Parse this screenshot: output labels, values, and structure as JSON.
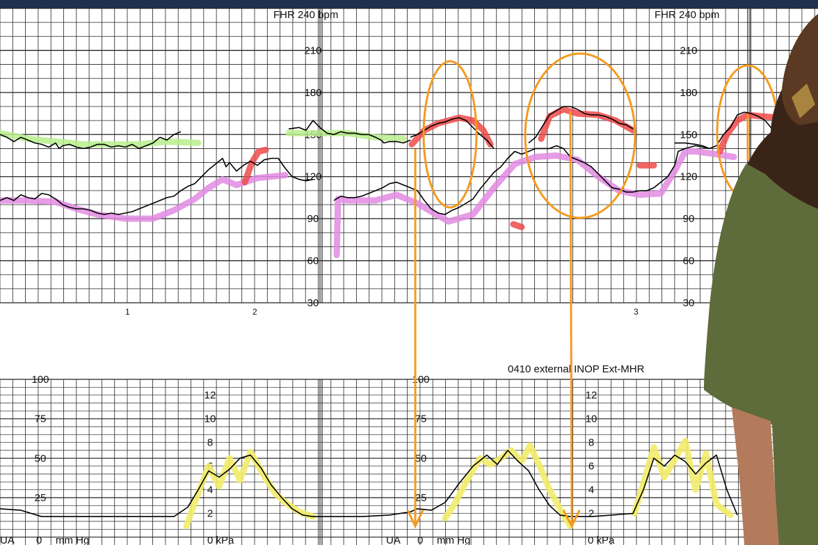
{
  "chart_data": [
    {
      "type": "line",
      "panel": "fetal-heart-rate",
      "y_unit_header": "FHR 240 bpm",
      "y_ticks": [
        30,
        60,
        90,
        120,
        150,
        180,
        210
      ],
      "y_tick_labels": [
        "30",
        "60",
        "90",
        "120",
        "150",
        "180",
        "210"
      ],
      "ylim": [
        30,
        240
      ],
      "x_minute_labels": [
        "1",
        "2",
        "3"
      ],
      "grid": true,
      "series": [
        {
          "color": "#000000",
          "x": [
            0,
            10,
            20,
            30,
            40,
            50,
            60,
            70,
            80,
            85,
            90,
            100,
            110,
            120,
            130,
            140,
            150,
            160,
            170,
            180,
            190,
            200,
            210,
            220,
            230,
            240,
            250,
            260
          ],
          "y": [
            150,
            148,
            145,
            148,
            146,
            144,
            143,
            141,
            144,
            140,
            142,
            143,
            141,
            140,
            141,
            143,
            143,
            141,
            142,
            141,
            143,
            140,
            142,
            144,
            148,
            146,
            150,
            152
          ]
        },
        {
          "color": "#000000",
          "x": [
            415,
            430,
            440,
            450,
            460,
            470,
            480,
            490,
            500,
            510,
            520,
            530,
            540,
            548,
            552,
            560,
            570,
            580,
            590
          ],
          "y": [
            154,
            155,
            153,
            160,
            155,
            151,
            150,
            152,
            151,
            151,
            150,
            150,
            148,
            146,
            144,
            145,
            145,
            144,
            146
          ]
        },
        {
          "color": "#000000",
          "x": [
            590,
            600,
            610,
            620,
            630,
            640,
            650,
            660,
            670,
            680,
            690,
            700,
            710
          ],
          "y": [
            148,
            150,
            153,
            156,
            158,
            159,
            161,
            162,
            160,
            155,
            150,
            146,
            140
          ]
        },
        {
          "color": "#000000",
          "x": [
            760,
            770,
            780,
            790,
            800,
            810,
            820,
            830,
            840,
            850,
            860,
            870,
            880,
            890,
            900,
            910
          ],
          "y": [
            144,
            148,
            156,
            164,
            167,
            170,
            170,
            168,
            165,
            164,
            164,
            163,
            161,
            158,
            157,
            154
          ]
        },
        {
          "color": "#000000",
          "x": [
            970,
            985,
            1000,
            1010,
            1020,
            1030,
            1040,
            1050,
            1060,
            1070,
            1080,
            1090,
            1100,
            1110,
            1120,
            1135
          ],
          "y": [
            144,
            144,
            143,
            142,
            140,
            142,
            150,
            155,
            164,
            166,
            165,
            163,
            160,
            154,
            153,
            152
          ]
        },
        {
          "color": "#000000",
          "x": [
            0,
            10,
            20,
            30,
            40,
            50,
            60,
            70,
            80,
            90,
            100,
            110,
            120,
            130,
            140,
            150,
            160,
            170,
            180,
            190,
            200,
            210,
            220,
            230,
            240,
            250,
            260,
            270,
            280,
            290,
            300,
            310,
            320,
            325,
            330,
            340,
            350,
            360,
            370,
            380,
            390,
            400,
            410,
            420,
            430,
            440,
            450
          ],
          "y": [
            103,
            105,
            103,
            107,
            105,
            104,
            108,
            107,
            104,
            100,
            98,
            97,
            97,
            96,
            94,
            93,
            94,
            93,
            94,
            95,
            97,
            99,
            101,
            103,
            105,
            106,
            110,
            113,
            115,
            120,
            125,
            129,
            133,
            127,
            130,
            124,
            128,
            131,
            128,
            132,
            133,
            133,
            126,
            120,
            118,
            117,
            118
          ]
        },
        {
          "color": "#000000",
          "x": [
            480,
            490,
            500,
            510,
            520,
            530,
            540,
            550,
            560,
            570,
            580,
            590,
            600,
            610,
            620,
            630,
            640,
            650,
            660,
            670,
            680,
            690,
            700,
            710,
            720,
            730,
            740,
            750,
            760,
            770,
            780,
            790,
            800,
            810,
            820,
            830,
            840,
            850,
            860,
            870,
            880,
            890,
            900,
            910,
            920,
            930,
            940,
            950,
            960,
            970,
            975,
            985,
            1000,
            1010,
            1020
          ],
          "y": [
            103,
            106,
            105,
            105,
            106,
            108,
            110,
            112,
            115,
            116,
            114,
            112,
            110,
            103,
            97,
            94,
            93,
            96,
            98,
            101,
            104,
            111,
            117,
            123,
            127,
            133,
            138,
            136,
            138,
            140,
            140,
            140,
            142,
            140,
            134,
            132,
            130,
            127,
            122,
            117,
            112,
            111,
            109,
            109,
            110,
            110,
            112,
            116,
            120,
            128,
            138,
            140,
            142,
            141,
            140
          ]
        }
      ],
      "annotations": {
        "green": [
          {
            "x": [
              0,
              40,
              80,
              120,
              160,
              200,
              240,
              285
            ],
            "y": [
              151,
              147,
              145,
              143,
              143,
              143,
              145,
              144
            ]
          },
          {
            "x": [
              415,
              460,
              500,
              540,
              580
            ],
            "y": [
              151,
              151,
              151,
              148,
              147
            ]
          }
        ],
        "pink": [
          {
            "x": [
              0,
              40,
              80,
              110,
              140,
              180,
              220,
              250,
              280,
              300,
              320,
              340,
              370,
              410
            ],
            "y": [
              103,
              103,
              102,
              97,
              93,
              90,
              90,
              96,
              104,
              112,
              118,
              114,
              119,
              121
            ]
          },
          {
            "x": [
              484,
              486,
              500,
              540,
              570,
              600,
              620,
              645,
              680,
              710,
              740,
              770,
              800,
              830,
              860,
              890,
              920,
              950,
              970,
              985,
              1000,
              1030,
              1055
            ],
            "y": [
              64,
              104,
              103,
              103,
              107,
              101,
              95,
              88,
              93,
              112,
              129,
              134,
              135,
              132,
              120,
              110,
              107,
              108,
              124,
              138,
              138,
              136,
              134
            ]
          }
        ],
        "red": [
          {
            "x": [
              352,
              362,
              372,
              382
            ],
            "y": [
              116,
              130,
              138,
              139
            ]
          },
          {
            "x": [
              592,
              610,
              630,
              660,
              680,
              695,
              705
            ],
            "y": [
              143,
              153,
              158,
              162,
              160,
              153,
              143
            ]
          },
          {
            "x": [
              778,
              790,
              810,
              830,
              860,
              885,
              910
            ],
            "y": [
              147,
              163,
              168,
              165,
              164,
              160,
              153
            ]
          },
          {
            "x": [
              1035,
              1045,
              1060,
              1075,
              1095,
              1120
            ],
            "y": [
              138,
              150,
              160,
              164,
              163,
              162
            ]
          },
          {
            "x": [
              738,
              750
            ],
            "y": [
              86,
              84
            ]
          },
          {
            "x": [
              920,
              940
            ],
            "y": [
              128,
              128
            ]
          }
        ]
      },
      "circled_regions": [
        "orange-ellipse-1",
        "orange-ellipse-2",
        "orange-ellipse-3"
      ]
    },
    {
      "type": "line",
      "panel": "uterine-activity",
      "y_header": "100",
      "y_ticks_mmhg": [
        25,
        50,
        75,
        100
      ],
      "y_tick_labels_mmhg": [
        "25",
        "50",
        "75",
        "100"
      ],
      "y_ticks_kpa": [
        2,
        4,
        6,
        8,
        10,
        12
      ],
      "y_tick_labels_kpa": [
        "2",
        "4",
        "6",
        "8",
        "10",
        "12"
      ],
      "ylim": [
        0,
        100
      ],
      "grid": true,
      "series": [
        {
          "color": "#000000",
          "x": [
            0,
            30,
            60,
            100,
            150,
            200,
            250,
            270,
            285,
            300,
            315,
            330,
            345,
            360,
            375,
            390,
            405,
            420,
            435,
            450,
            480,
            520,
            560,
            590,
            600,
            620,
            640,
            660,
            680,
            700,
            715,
            730,
            745,
            760,
            775,
            790,
            805,
            820,
            850,
            880,
            910,
            925,
            940,
            955,
            970,
            985,
            1000,
            1015,
            1030,
            1045,
            1060
          ],
          "y": [
            18,
            17,
            13,
            13,
            13,
            13,
            13,
            19,
            30,
            42,
            38,
            43,
            50,
            52,
            44,
            33,
            25,
            18,
            14,
            13,
            13,
            13,
            14,
            16,
            18,
            17,
            22,
            34,
            45,
            52,
            46,
            55,
            48,
            42,
            30,
            20,
            14,
            13,
            13,
            14,
            15,
            30,
            50,
            45,
            52,
            48,
            40,
            47,
            52,
            30,
            14
          ]
        }
      ],
      "annotations": {
        "yellow": [
          {
            "x": [
              268,
              285,
              300,
              315,
              330,
              345,
              360,
              378,
              395,
              410,
              430,
              450
            ],
            "y": [
              7,
              28,
              45,
              32,
              50,
              36,
              54,
              40,
              28,
              22,
              16,
              13
            ]
          },
          {
            "x": [
              640,
              655,
              670,
              690,
              705,
              720,
              735,
              750,
              762,
              775,
              790,
              805,
              820
            ],
            "y": [
              12,
              22,
              35,
              50,
              46,
              50,
              55,
              48,
              58,
              46,
              30,
              18,
              7
            ]
          },
          {
            "x": [
              912,
              925,
              940,
              955,
              970,
              985,
              1000,
              1015,
              1030,
              1050
            ],
            "y": [
              15,
              34,
              57,
              38,
              49,
              61,
              30,
              53,
              21,
              14
            ]
          }
        ]
      },
      "status_text": "0410  external  INOP  Ext-MHR",
      "footer_labels": [
        "UA",
        "0",
        "mm Hg",
        "0 kPa"
      ]
    }
  ],
  "colors": {
    "trace": "#000000",
    "grid": "#222222",
    "green_highlight": "#b8ef8c",
    "pink_highlight": "#e28be2",
    "red_highlight": "#ee4a4a",
    "yellow_highlight": "#f2ec6a",
    "orange_markup": "#f59a1e",
    "top_bar": "#1f2f4f"
  },
  "overlay": {
    "presenter": "person-on-right-icon"
  }
}
